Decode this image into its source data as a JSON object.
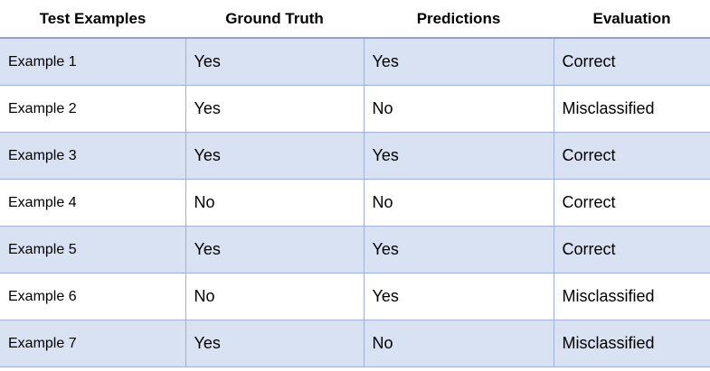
{
  "table": {
    "headers": [
      "Test Examples",
      "Ground Truth",
      "Predictions",
      "Evaluation"
    ],
    "rows": [
      [
        "Example 1",
        "Yes",
        "Yes",
        "Correct"
      ],
      [
        "Example 2",
        "Yes",
        "No",
        "Misclassified"
      ],
      [
        "Example 3",
        "Yes",
        "Yes",
        "Correct"
      ],
      [
        "Example 4",
        "No",
        "No",
        "Correct"
      ],
      [
        "Example 5",
        "Yes",
        "Yes",
        "Correct"
      ],
      [
        "Example 6",
        "No",
        "Yes",
        "Misclassified"
      ],
      [
        "Example 7",
        "Yes",
        "No",
        "Misclassified"
      ]
    ]
  },
  "colors": {
    "band_fill": "#d9e2f2",
    "rule": "#9fb1d8"
  }
}
